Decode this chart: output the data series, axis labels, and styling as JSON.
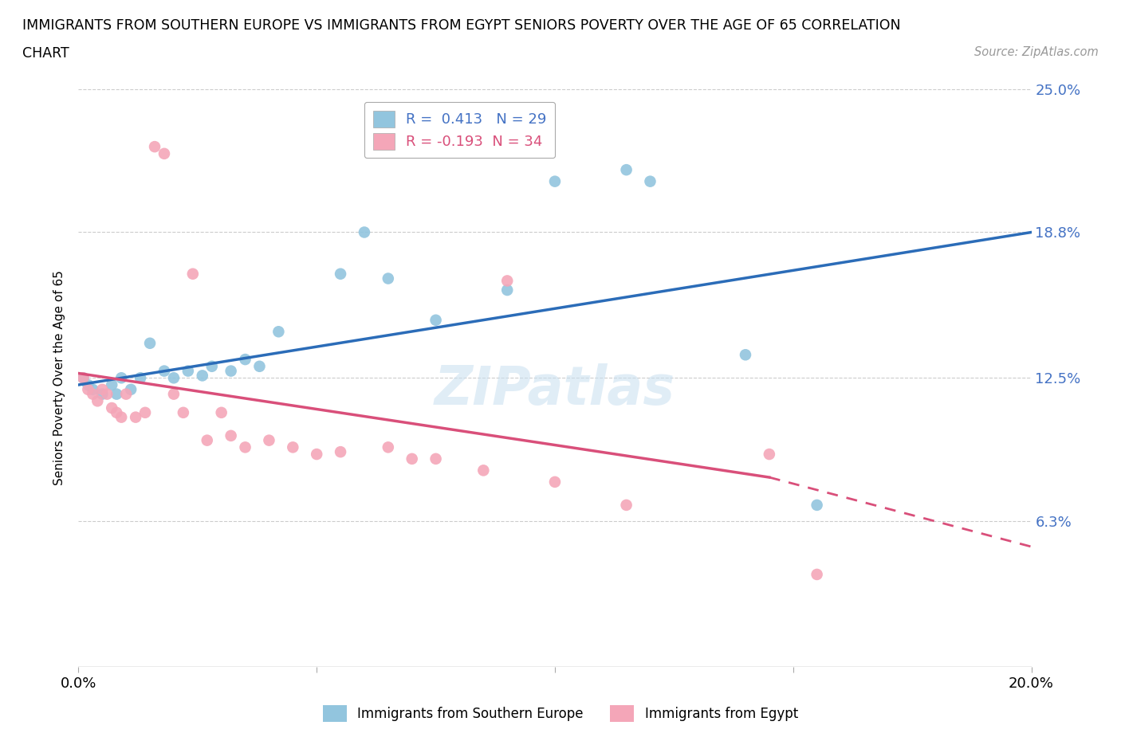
{
  "title_line1": "IMMIGRANTS FROM SOUTHERN EUROPE VS IMMIGRANTS FROM EGYPT SENIORS POVERTY OVER THE AGE OF 65 CORRELATION",
  "title_line2": "CHART",
  "source": "Source: ZipAtlas.com",
  "ylabel": "Seniors Poverty Over the Age of 65",
  "xlim": [
    0.0,
    0.2
  ],
  "ylim": [
    0.0,
    0.25
  ],
  "ytick_vals": [
    0.0,
    0.063,
    0.125,
    0.188,
    0.25
  ],
  "ytick_labels": [
    "",
    "6.3%",
    "12.5%",
    "18.8%",
    "25.0%"
  ],
  "xtick_vals": [
    0.0,
    0.05,
    0.1,
    0.15,
    0.2
  ],
  "xtick_labels": [
    "0.0%",
    "",
    "",
    "",
    "20.0%"
  ],
  "R_blue": 0.413,
  "N_blue": 29,
  "R_pink": -0.193,
  "N_pink": 34,
  "color_blue": "#92c5de",
  "color_pink": "#f4a6b8",
  "line_color_blue": "#2b6cb8",
  "line_color_pink": "#d94f7a",
  "watermark": "ZIPatlas",
  "legend_label_blue": "Immigrants from Southern Europe",
  "legend_label_pink": "Immigrants from Egypt",
  "blue_x": [
    0.001,
    0.002,
    0.003,
    0.005,
    0.007,
    0.008,
    0.009,
    0.011,
    0.013,
    0.015,
    0.018,
    0.02,
    0.023,
    0.026,
    0.028,
    0.032,
    0.035,
    0.038,
    0.042,
    0.055,
    0.06,
    0.065,
    0.075,
    0.09,
    0.1,
    0.115,
    0.12,
    0.14,
    0.155
  ],
  "blue_y": [
    0.125,
    0.122,
    0.12,
    0.118,
    0.122,
    0.118,
    0.125,
    0.12,
    0.125,
    0.14,
    0.128,
    0.125,
    0.128,
    0.126,
    0.13,
    0.128,
    0.133,
    0.13,
    0.145,
    0.17,
    0.188,
    0.168,
    0.15,
    0.163,
    0.21,
    0.215,
    0.21,
    0.135,
    0.07
  ],
  "pink_x": [
    0.001,
    0.002,
    0.003,
    0.004,
    0.005,
    0.006,
    0.007,
    0.008,
    0.009,
    0.01,
    0.012,
    0.014,
    0.016,
    0.018,
    0.02,
    0.022,
    0.024,
    0.027,
    0.03,
    0.032,
    0.035,
    0.04,
    0.045,
    0.05,
    0.055,
    0.065,
    0.07,
    0.075,
    0.085,
    0.09,
    0.1,
    0.115,
    0.145,
    0.155
  ],
  "pink_y": [
    0.125,
    0.12,
    0.118,
    0.115,
    0.12,
    0.118,
    0.112,
    0.11,
    0.108,
    0.118,
    0.108,
    0.11,
    0.225,
    0.222,
    0.118,
    0.11,
    0.17,
    0.098,
    0.11,
    0.1,
    0.095,
    0.098,
    0.095,
    0.092,
    0.093,
    0.095,
    0.09,
    0.09,
    0.085,
    0.167,
    0.08,
    0.07,
    0.092,
    0.04
  ],
  "grid_color": "#cccccc",
  "grid_lw": 0.8,
  "scatter_size": 110
}
